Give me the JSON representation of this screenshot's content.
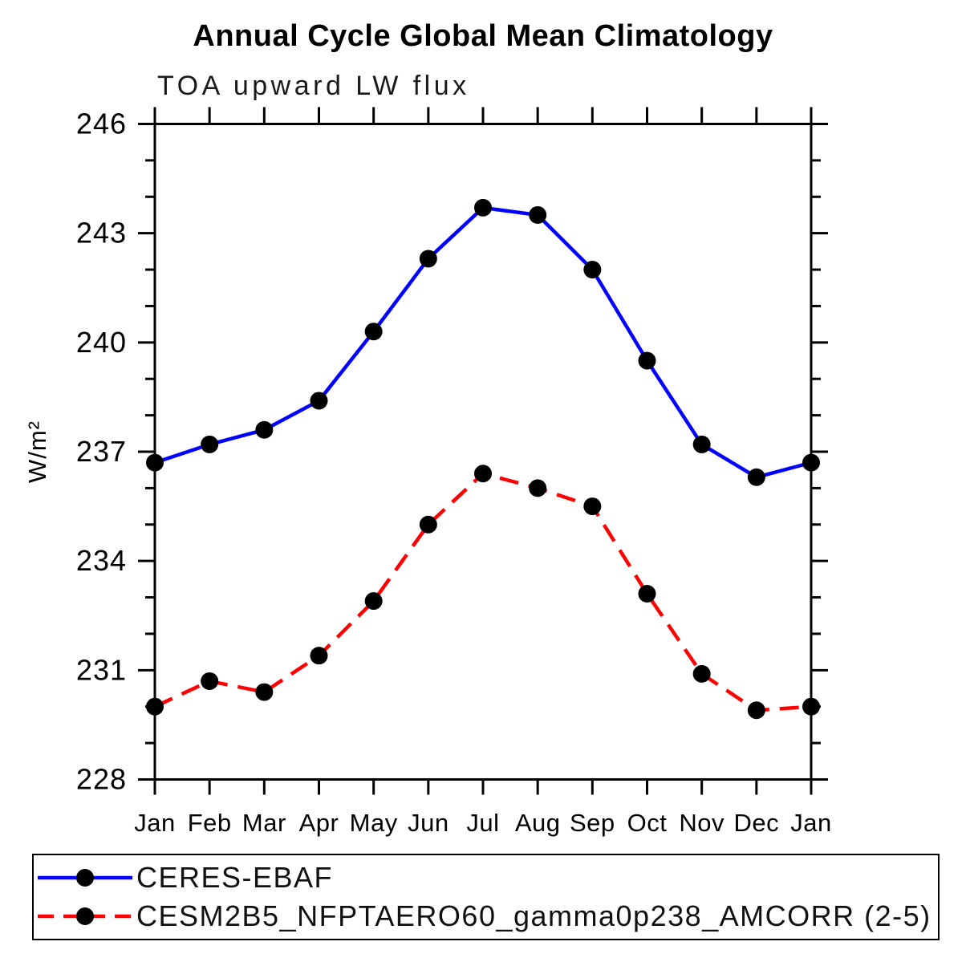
{
  "chart_data": {
    "type": "line",
    "title": "Annual Cycle Global Mean Climatology",
    "subtitle": "TOA upward LW flux",
    "categories": [
      "Jan",
      "Feb",
      "Mar",
      "Apr",
      "May",
      "Jun",
      "Jul",
      "Aug",
      "Sep",
      "Oct",
      "Nov",
      "Dec",
      "Jan"
    ],
    "xlabel": "",
    "ylabel": "W/m²",
    "ylim": [
      228,
      246
    ],
    "ytick_step": 3,
    "yminor_step": 1,
    "ytick_labels": [
      "228",
      "231",
      "234",
      "237",
      "240",
      "243",
      "246"
    ],
    "grid": false,
    "legend_position": "bottom-box",
    "axis_color": "#000000",
    "marker_shape": "filled-circle",
    "series": [
      {
        "name": "CERES-EBAF",
        "color": "#0000ff",
        "line_style": "solid",
        "marker_color": "#000000",
        "values": [
          236.7,
          237.2,
          237.6,
          238.4,
          240.3,
          242.3,
          243.7,
          243.5,
          242.0,
          239.5,
          237.2,
          236.3,
          236.7
        ]
      },
      {
        "name": "CESM2B5_NFPTAERO60_gamma0p238_AMCORR (2-5)",
        "color": "#ff0000",
        "line_style": "dashed",
        "marker_color": "#000000",
        "values": [
          230.0,
          230.7,
          230.4,
          231.4,
          232.9,
          235.0,
          236.4,
          236.0,
          235.5,
          233.1,
          230.9,
          229.9,
          230.0
        ]
      }
    ]
  }
}
